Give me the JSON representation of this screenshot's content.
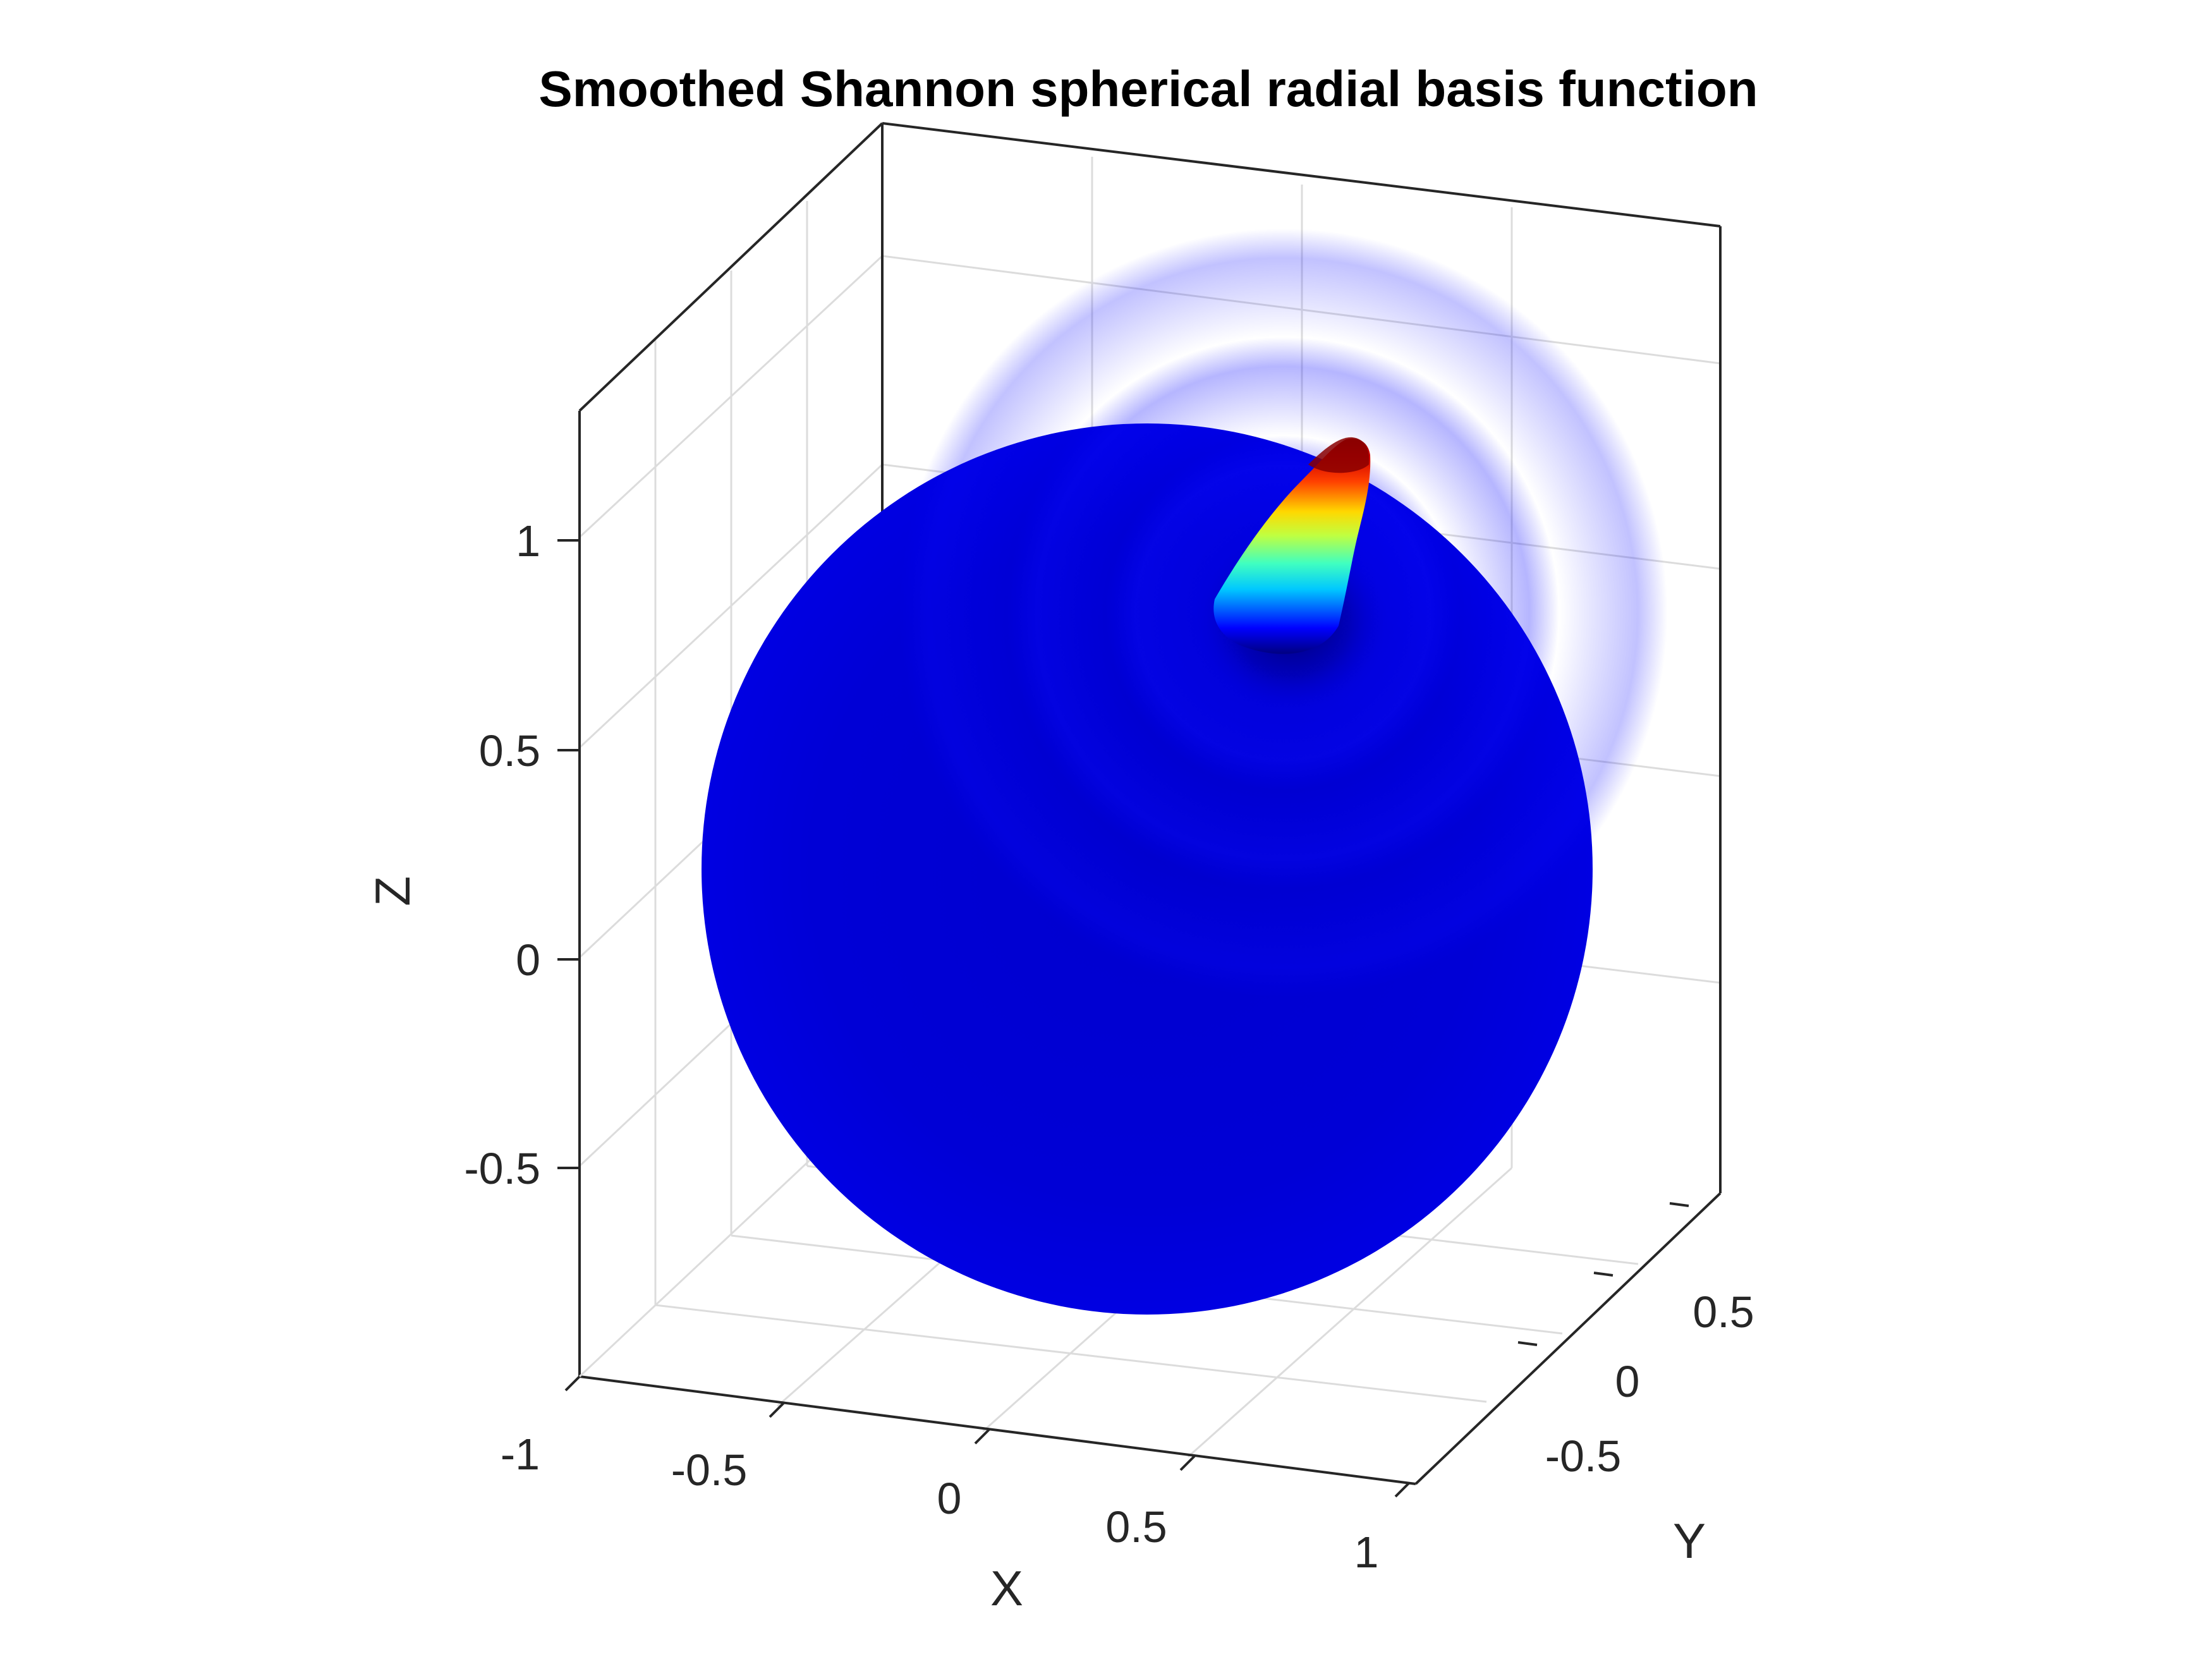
{
  "chart_data": {
    "type": "surface",
    "title": "Smoothed Shannon spherical radial basis function",
    "xlabel": "X",
    "ylabel": "Y",
    "zlabel": "Z",
    "x_ticks": [
      "-1",
      "-0.5",
      "0",
      "0.5",
      "1"
    ],
    "y_ticks": [
      "-0.5",
      "0",
      "0.5"
    ],
    "z_ticks": [
      "-0.5",
      "0",
      "0.5",
      "1"
    ],
    "xlim": [
      -1,
      1
    ],
    "ylim": [
      -1,
      1
    ],
    "zlim": [
      -1,
      1.3
    ],
    "grid": true,
    "colormap": "jet",
    "surface": {
      "shape": "unit sphere with radial spike",
      "sphere_radius": 1,
      "peak_height": 1.3,
      "base_color": "#0000d8",
      "peak_color": "#a00000"
    }
  }
}
